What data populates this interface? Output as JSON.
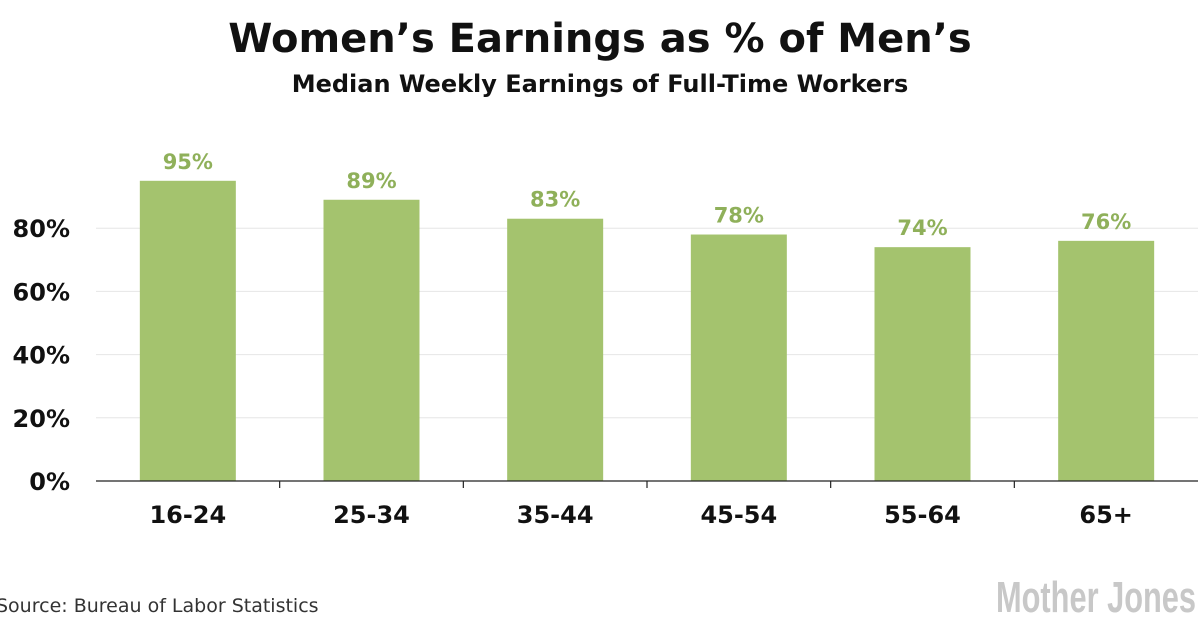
{
  "chart_data": {
    "type": "bar",
    "title": "Women’s Earnings as % of Men’s",
    "subtitle": "Median Weekly Earnings of Full-Time Workers",
    "categories": [
      "16-24",
      "25-34",
      "35-44",
      "45-54",
      "55-64",
      "65+"
    ],
    "values": [
      95,
      89,
      83,
      78,
      74,
      76
    ],
    "data_labels": [
      "95%",
      "89%",
      "83%",
      "78%",
      "74%",
      "76%"
    ],
    "yticks": [
      0,
      20,
      40,
      60,
      80
    ],
    "ytick_labels": [
      "0%",
      "20%",
      "40%",
      "60%",
      "80%"
    ],
    "ylim": [
      0,
      100
    ],
    "grid": true,
    "xlabel": "",
    "ylabel": "",
    "bar_color": "#a4c36e",
    "label_color": "#8fb05a"
  },
  "footer": {
    "source": "Source: Bureau of Labor Statistics",
    "logo": "Mother Jones"
  }
}
